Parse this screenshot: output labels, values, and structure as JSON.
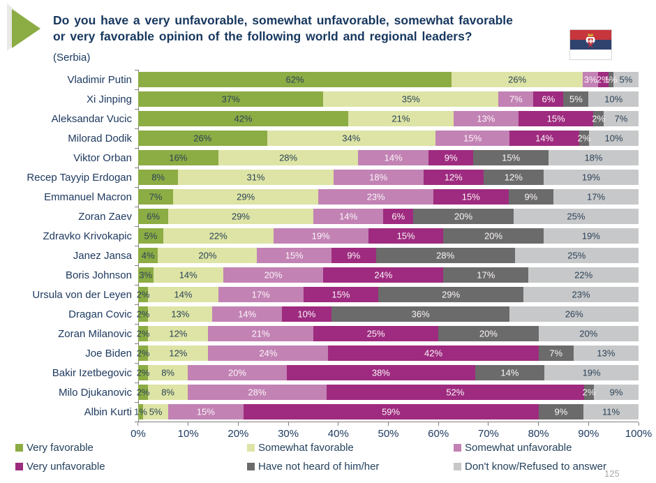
{
  "header": {
    "title_line1": "Do you have a very unfavorable, somewhat unfavorable, somewhat favorable",
    "title_line2": "or very favorable opinion of the following world and regional leaders?",
    "subtitle": "(Serbia)",
    "flag": {
      "name": "serbia-flag",
      "stripe_colors": [
        "#c6363c",
        "#30426e",
        "#ffffff"
      ]
    }
  },
  "page_number": "125",
  "chart_data": {
    "type": "bar",
    "variant": "horizontal-stacked-100",
    "title": "Do you have a very unfavorable, somewhat unfavorable, somewhat favorable or very favorable opinion of the following world and regional leaders? (Serbia)",
    "unit": "%",
    "xlabel": "",
    "ylabel": "",
    "xlim": [
      0,
      100
    ],
    "x_tick_labels": [
      "0%",
      "10%",
      "20%",
      "30%",
      "40%",
      "50%",
      "60%",
      "70%",
      "80%",
      "90%",
      "100%"
    ],
    "legend_position": "bottom",
    "grid": false,
    "categories": [
      "Vladimir Putin",
      "Xi Jinping",
      "Aleksandar Vucic",
      "Milorad Dodik",
      "Viktor Orban",
      "Recep Tayyip Erdogan",
      "Emmanuel Macron",
      "Zoran Zaev",
      "Zdravko Krivokapic",
      "Janez Jansa",
      "Boris Johnson",
      "Ursula von der Leyen",
      "Dragan Covic",
      "Zoran Milanovic",
      "Joe Biden",
      "Bakir Izetbegovic",
      "Milo Djukanovic",
      "Albin Kurti"
    ],
    "series": [
      {
        "name": "Very favorable",
        "color": "#8cac44",
        "label_style": "dark",
        "values": [
          62,
          37,
          42,
          26,
          16,
          8,
          7,
          6,
          5,
          4,
          3,
          2,
          2,
          2,
          2,
          2,
          2,
          1
        ]
      },
      {
        "name": "Somewhat favorable",
        "color": "#dde4a5",
        "label_style": "dark",
        "values": [
          26,
          35,
          21,
          34,
          28,
          31,
          29,
          29,
          22,
          20,
          14,
          14,
          13,
          12,
          12,
          8,
          8,
          5
        ]
      },
      {
        "name": "Somewhat unfavorable",
        "color": "#c282b4",
        "label_style": "light",
        "values": [
          3,
          7,
          13,
          15,
          14,
          18,
          23,
          14,
          19,
          15,
          20,
          17,
          14,
          21,
          24,
          20,
          28,
          15
        ]
      },
      {
        "name": "Very unfavorable",
        "color": "#9e2b7f",
        "label_style": "light",
        "values": [
          2,
          6,
          15,
          14,
          9,
          12,
          15,
          6,
          15,
          9,
          24,
          15,
          10,
          25,
          42,
          38,
          52,
          59
        ]
      },
      {
        "name": "Have not heard of him/her",
        "color": "#6b6b6b",
        "label_style": "light",
        "values": [
          1,
          5,
          2,
          2,
          15,
          12,
          9,
          20,
          20,
          28,
          17,
          29,
          36,
          20,
          7,
          14,
          2,
          9
        ]
      },
      {
        "name": "Don't know/Refused to answer",
        "color": "#c7c8c9",
        "label_style": "dark",
        "values": [
          5,
          10,
          7,
          10,
          18,
          19,
          17,
          25,
          19,
          25,
          22,
          23,
          26,
          20,
          13,
          19,
          9,
          11
        ]
      }
    ]
  }
}
